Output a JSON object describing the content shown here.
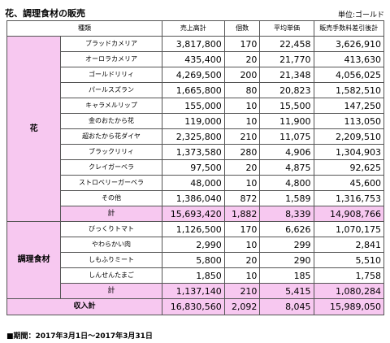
{
  "title": "花、調理食材の販売",
  "unit": "単位:ゴールド",
  "headers": {
    "kind": "種類",
    "sales_total": "売上高計",
    "count": "個数",
    "avg_price": "平均単価",
    "net_total": "販売手数料差引後計"
  },
  "groups": [
    {
      "name": "花",
      "items": [
        {
          "name": "ブラッドカメリア",
          "sales": "3,817,800",
          "count": "170",
          "avg": "22,458",
          "net": "3,626,910"
        },
        {
          "name": "オーロラカメリア",
          "sales": "435,400",
          "count": "20",
          "avg": "21,770",
          "net": "413,630"
        },
        {
          "name": "ゴールドリリィ",
          "sales": "4,269,500",
          "count": "200",
          "avg": "21,348",
          "net": "4,056,025"
        },
        {
          "name": "パールスズラン",
          "sales": "1,665,800",
          "count": "80",
          "avg": "20,823",
          "net": "1,582,510"
        },
        {
          "name": "キャラメルリップ",
          "sales": "155,000",
          "count": "10",
          "avg": "15,500",
          "net": "147,250"
        },
        {
          "name": "金のおたから花",
          "sales": "119,000",
          "count": "10",
          "avg": "11,900",
          "net": "113,050"
        },
        {
          "name": "超おたから花ダイヤ",
          "sales": "2,325,800",
          "count": "210",
          "avg": "11,075",
          "net": "2,209,510"
        },
        {
          "name": "ブラックリリィ",
          "sales": "1,373,580",
          "count": "280",
          "avg": "4,906",
          "net": "1,304,903"
        },
        {
          "name": "クレイガーベラ",
          "sales": "97,500",
          "count": "20",
          "avg": "4,875",
          "net": "92,625"
        },
        {
          "name": "ストロベリーガーベラ",
          "sales": "48,000",
          "count": "10",
          "avg": "4,800",
          "net": "45,600"
        },
        {
          "name": "その他",
          "sales": "1,386,040",
          "count": "872",
          "avg": "1,589",
          "net": "1,316,753"
        }
      ],
      "subtotal": {
        "label": "計",
        "sales": "15,693,420",
        "count": "1,882",
        "avg": "8,339",
        "net": "14,908,766"
      }
    },
    {
      "name": "調理食材",
      "items": [
        {
          "name": "びっくりトマト",
          "sales": "1,126,500",
          "count": "170",
          "avg": "6,626",
          "net": "1,070,175"
        },
        {
          "name": "やわらかい肉",
          "sales": "2,990",
          "count": "10",
          "avg": "299",
          "net": "2,841"
        },
        {
          "name": "しもふりミート",
          "sales": "5,800",
          "count": "20",
          "avg": "290",
          "net": "5,510"
        },
        {
          "name": "しんせんたまご",
          "sales": "1,850",
          "count": "10",
          "avg": "185",
          "net": "1,758"
        }
      ],
      "subtotal": {
        "label": "計",
        "sales": "1,137,140",
        "count": "210",
        "avg": "5,415",
        "net": "1,080,284"
      }
    }
  ],
  "grand_total": {
    "label": "収入計",
    "sales": "16,830,560",
    "count": "2,092",
    "avg": "8,045",
    "net": "15,989,050"
  },
  "footer": "■期間：2017年3月1日～2017年3月31日",
  "colors": {
    "highlight": "#f7c8f0",
    "border": "#555555"
  }
}
